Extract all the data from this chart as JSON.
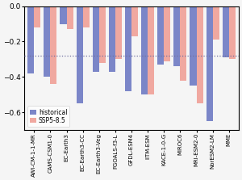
{
  "models": [
    "AWI-CM-1-1-MR",
    "CAMS-CSM1-0",
    "EC-Earth3",
    "EC-Earth3-CC",
    "EC-Earth3-Veg",
    "FGOALS-f3-L",
    "GFDL-ESM4",
    "IITM-ESM",
    "KACE-1-0-G",
    "MIROC6",
    "MRI-ESM2-0",
    "NorESM2-LM",
    "MME"
  ],
  "historical": [
    -0.38,
    -0.4,
    -0.1,
    -0.55,
    -0.37,
    -0.37,
    -0.48,
    -0.5,
    -0.33,
    -0.34,
    -0.45,
    -0.65,
    -0.29
  ],
  "ssp585": [
    -0.12,
    -0.44,
    -0.13,
    -0.12,
    -0.32,
    -0.3,
    -0.17,
    -0.5,
    -0.31,
    -0.42,
    -0.55,
    -0.19,
    -0.3
  ],
  "significance_line": -0.28,
  "bar_width": 0.4,
  "hist_color": "#7B86C8",
  "ssp_color": "#F0A8A0",
  "dotted_line_color": "#7070A0",
  "ylim": [
    -0.7,
    0.0
  ],
  "yticks": [
    0.0,
    -0.2,
    -0.4,
    -0.6
  ],
  "background_color": "#f5f5f5",
  "legend_labels": [
    "historical",
    "SSP5-8.5"
  ],
  "legend_fontsize": 5.5,
  "tick_fontsize": 5.0,
  "ytick_fontsize": 6.5
}
